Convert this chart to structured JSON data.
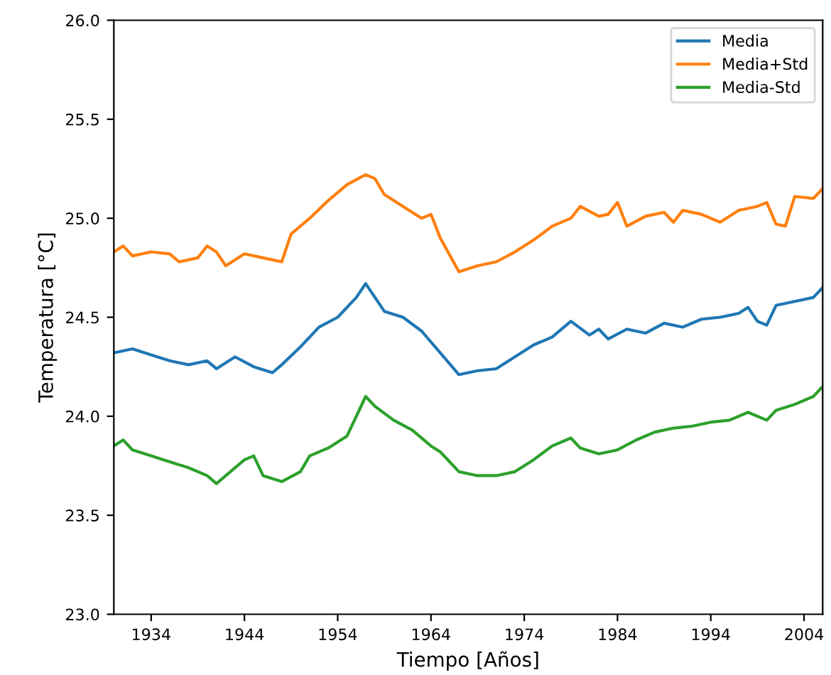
{
  "chart_data": {
    "type": "line",
    "xlabel": "Tiempo [Años]",
    "ylabel": "Temperatura [°C]",
    "xlim": [
      1930,
      2006
    ],
    "ylim": [
      23,
      26
    ],
    "xticks": [
      1934,
      1944,
      1954,
      1964,
      1974,
      1984,
      1994,
      2004
    ],
    "yticks": [
      {
        "value": 23,
        "label": "23.0"
      },
      {
        "value": 23.5,
        "label": "23.5"
      },
      {
        "value": 24,
        "label": "24.0"
      },
      {
        "value": 24.5,
        "label": "24.5"
      },
      {
        "value": 25,
        "label": "25.0"
      },
      {
        "value": 25.5,
        "label": "25.5"
      },
      {
        "value": 26,
        "label": "26.0"
      }
    ],
    "legend": "top right",
    "grid": false,
    "series": [
      {
        "name": "Media",
        "color": "#1f77b4",
        "x": [
          1930,
          1932,
          1934,
          1936,
          1938,
          1940,
          1941,
          1943,
          1945,
          1947,
          1948,
          1950,
          1952,
          1954,
          1956,
          1957,
          1958,
          1959,
          1961,
          1963,
          1965,
          1967,
          1969,
          1971,
          1973,
          1975,
          1977,
          1979,
          1981,
          1982,
          1983,
          1985,
          1987,
          1989,
          1991,
          1993,
          1995,
          1997,
          1998,
          1999,
          2000,
          2001,
          2003,
          2005,
          2006
        ],
        "values": [
          24.32,
          24.34,
          24.31,
          24.28,
          24.26,
          24.28,
          24.24,
          24.3,
          24.25,
          24.22,
          24.26,
          24.35,
          24.45,
          24.5,
          24.6,
          24.67,
          24.6,
          24.53,
          24.5,
          24.43,
          24.32,
          24.21,
          24.23,
          24.24,
          24.3,
          24.36,
          24.4,
          24.48,
          24.41,
          24.44,
          24.39,
          24.44,
          24.42,
          24.47,
          24.45,
          24.49,
          24.5,
          24.52,
          24.55,
          24.48,
          24.46,
          24.56,
          24.58,
          24.6,
          24.65
        ]
      },
      {
        "name": "Media+Std",
        "color": "#ff7f0e",
        "x": [
          1930,
          1931,
          1932,
          1934,
          1936,
          1937,
          1939,
          1940,
          1941,
          1942,
          1944,
          1946,
          1948,
          1949,
          1951,
          1953,
          1955,
          1957,
          1958,
          1959,
          1961,
          1963,
          1964,
          1965,
          1967,
          1969,
          1971,
          1973,
          1975,
          1977,
          1979,
          1980,
          1982,
          1983,
          1984,
          1985,
          1987,
          1989,
          1990,
          1991,
          1993,
          1995,
          1997,
          1999,
          2000,
          2001,
          2002,
          2003,
          2005,
          2006
        ],
        "values": [
          24.83,
          24.86,
          24.81,
          24.83,
          24.82,
          24.78,
          24.8,
          24.86,
          24.83,
          24.76,
          24.82,
          24.8,
          24.78,
          24.92,
          25.0,
          25.09,
          25.17,
          25.22,
          25.2,
          25.12,
          25.06,
          25.0,
          25.02,
          24.9,
          24.73,
          24.76,
          24.78,
          24.83,
          24.89,
          24.96,
          25.0,
          25.06,
          25.01,
          25.02,
          25.08,
          24.96,
          25.01,
          25.03,
          24.98,
          25.04,
          25.02,
          24.98,
          25.04,
          25.06,
          25.08,
          24.97,
          24.96,
          25.11,
          25.1,
          25.15
        ]
      },
      {
        "name": "Media-Std",
        "color": "#2ca02c",
        "x": [
          1930,
          1931,
          1932,
          1934,
          1936,
          1938,
          1940,
          1941,
          1942,
          1944,
          1945,
          1946,
          1948,
          1950,
          1951,
          1953,
          1955,
          1957,
          1958,
          1960,
          1962,
          1964,
          1965,
          1967,
          1969,
          1971,
          1973,
          1975,
          1977,
          1979,
          1980,
          1982,
          1984,
          1986,
          1988,
          1990,
          1992,
          1994,
          1996,
          1998,
          2000,
          2001,
          2003,
          2005,
          2006
        ],
        "values": [
          23.85,
          23.88,
          23.83,
          23.8,
          23.77,
          23.74,
          23.7,
          23.66,
          23.7,
          23.78,
          23.8,
          23.7,
          23.67,
          23.72,
          23.8,
          23.84,
          23.9,
          24.1,
          24.05,
          23.98,
          23.93,
          23.85,
          23.82,
          23.72,
          23.7,
          23.7,
          23.72,
          23.78,
          23.85,
          23.89,
          23.84,
          23.81,
          23.83,
          23.88,
          23.92,
          23.94,
          23.95,
          23.97,
          23.98,
          24.02,
          23.98,
          24.03,
          24.06,
          24.1,
          24.15
        ]
      }
    ]
  }
}
